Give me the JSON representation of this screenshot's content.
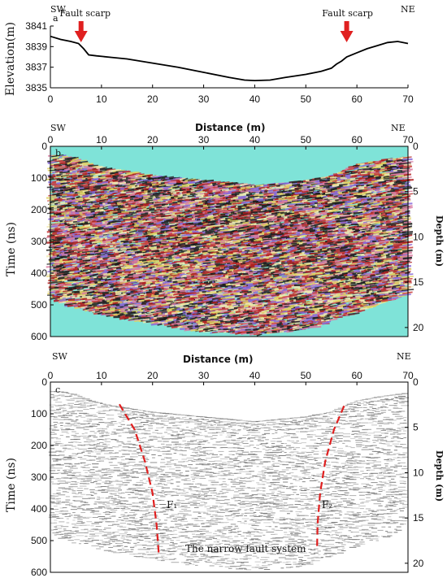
{
  "panel_a": {
    "letter": "a",
    "sw": "SW",
    "ne": "NE",
    "ylabel": "Elevation(m)",
    "xlabel": "Distance(m)",
    "scarp_label": "Fault scarp"
  },
  "panel_b": {
    "letter": "b",
    "sw": "SW",
    "ne": "NE",
    "ylabel": "Time (ns)",
    "ylabel_right": "Depth (m)",
    "xlabel": "Distance (m)",
    "bg_color": "#7fe3d8"
  },
  "panel_c": {
    "letter": "c",
    "sw": "SW",
    "ne": "NE",
    "ylabel": "Time (ns)",
    "ylabel_right": "Depth (m)",
    "xlabel": "Distance (m)",
    "fault1": "F₁",
    "fault2": "F₂",
    "caption": "The narrow fault system",
    "fault_color": "#e02020"
  },
  "chart_data": [
    {
      "type": "line",
      "panel": "a",
      "xlabel": "Distance(m)",
      "ylabel": "Elevation(m)",
      "xlim": [
        0,
        70
      ],
      "ylim": [
        3835,
        3841
      ],
      "xticks": [
        0,
        10,
        20,
        30,
        40,
        50,
        60,
        70
      ],
      "yticks": [
        3835,
        3837,
        3839,
        3841
      ],
      "x": [
        0,
        2,
        4,
        5.5,
        6.5,
        7.5,
        9,
        12,
        15,
        20,
        25,
        30,
        35,
        38,
        40,
        43,
        46,
        50,
        53,
        55,
        56,
        57,
        58,
        60,
        62,
        64,
        66,
        68,
        70
      ],
      "y": [
        3840.0,
        3839.7,
        3839.5,
        3839.3,
        3838.8,
        3838.2,
        3838.1,
        3837.95,
        3837.8,
        3837.4,
        3837.0,
        3836.5,
        3836.0,
        3835.75,
        3835.7,
        3835.75,
        3836.0,
        3836.3,
        3836.6,
        3836.9,
        3837.3,
        3837.6,
        3838.0,
        3838.4,
        3838.8,
        3839.1,
        3839.4,
        3839.5,
        3839.3
      ],
      "annotations": [
        {
          "text": "Fault scarp",
          "x": 6
        },
        {
          "text": "Fault scarp",
          "x": 58
        }
      ]
    },
    {
      "type": "heatmap",
      "panel": "b",
      "xlabel": "Distance (m)",
      "ylabel": "Time (ns)",
      "ylabel_right": "Depth (m)",
      "xlim": [
        0,
        70
      ],
      "ylim": [
        0,
        600
      ],
      "depth_lim": [
        0,
        21
      ],
      "xticks": [
        0,
        10,
        20,
        30,
        40,
        50,
        60,
        70
      ],
      "yticks": [
        0,
        100,
        200,
        300,
        400,
        500,
        600
      ],
      "depth_ticks": [
        0,
        5,
        10,
        15,
        20
      ],
      "top_x": [
        0,
        2,
        5,
        8,
        12,
        20,
        30,
        40,
        50,
        55,
        60,
        65,
        70
      ],
      "top_y": [
        30,
        30,
        40,
        60,
        75,
        95,
        110,
        125,
        110,
        95,
        60,
        45,
        35
      ],
      "bottom_x": [
        0,
        5,
        10,
        20,
        30,
        40,
        50,
        60,
        65,
        70
      ],
      "bottom_y": [
        480,
        510,
        530,
        560,
        585,
        595,
        580,
        525,
        495,
        470
      ]
    },
    {
      "type": "heatmap",
      "panel": "c",
      "xlabel": "Distance (m)",
      "ylabel": "Time (ns)",
      "ylabel_right": "Depth (m)",
      "xlim": [
        0,
        70
      ],
      "ylim": [
        0,
        600
      ],
      "depth_lim": [
        0,
        21
      ],
      "xticks": [
        0,
        10,
        20,
        30,
        40,
        50,
        60,
        70
      ],
      "yticks": [
        0,
        100,
        200,
        300,
        400,
        500,
        600
      ],
      "depth_ticks": [
        0,
        5,
        10,
        15,
        20
      ],
      "fault_F1_x": [
        13.5,
        16.5,
        18.5,
        20.0,
        20.8,
        21.2
      ],
      "fault_F1_y": [
        70,
        150,
        250,
        350,
        450,
        540
      ],
      "fault_F2_x": [
        57.5,
        55.5,
        53.8,
        52.8,
        52.3,
        52.2
      ],
      "fault_F2_y": [
        75,
        150,
        250,
        350,
        450,
        530
      ]
    }
  ]
}
